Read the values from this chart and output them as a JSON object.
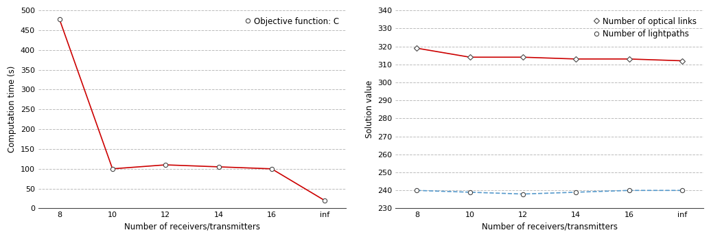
{
  "x_labels": [
    "8",
    "10",
    "12",
    "14",
    "16",
    "inf"
  ],
  "x_positions": [
    0,
    1,
    2,
    3,
    4,
    5
  ],
  "left_y": [
    478,
    100,
    110,
    105,
    100,
    20
  ],
  "left_ylabel": "Computation time (s)",
  "left_xlabel": "Number of receivers/transmitters",
  "left_ylim": [
    0,
    500
  ],
  "left_yticks": [
    0,
    50,
    100,
    150,
    200,
    250,
    300,
    350,
    400,
    450,
    500
  ],
  "left_legend": "Objective function: C",
  "left_line_color": "#cc0000",
  "right_y_red": [
    319,
    314,
    314,
    313,
    313,
    312
  ],
  "right_y_blue": [
    240,
    239,
    238,
    239,
    240,
    240
  ],
  "right_ylabel": "Solution value",
  "right_xlabel": "Number of receivers/transmitters",
  "right_ylim": [
    230,
    340
  ],
  "right_yticks": [
    230,
    240,
    250,
    260,
    270,
    280,
    290,
    300,
    310,
    320,
    330,
    340
  ],
  "right_legend_red": "Number of optical links",
  "right_legend_blue": "Number of lightpaths",
  "right_line_color_red": "#cc0000",
  "right_line_color_blue": "#5599cc",
  "background_color": "#ffffff",
  "grid_color": "#bbbbbb",
  "marker_edge_color": "#444444",
  "marker_size": 4.5,
  "font_size": 8.5,
  "tick_font_size": 8
}
